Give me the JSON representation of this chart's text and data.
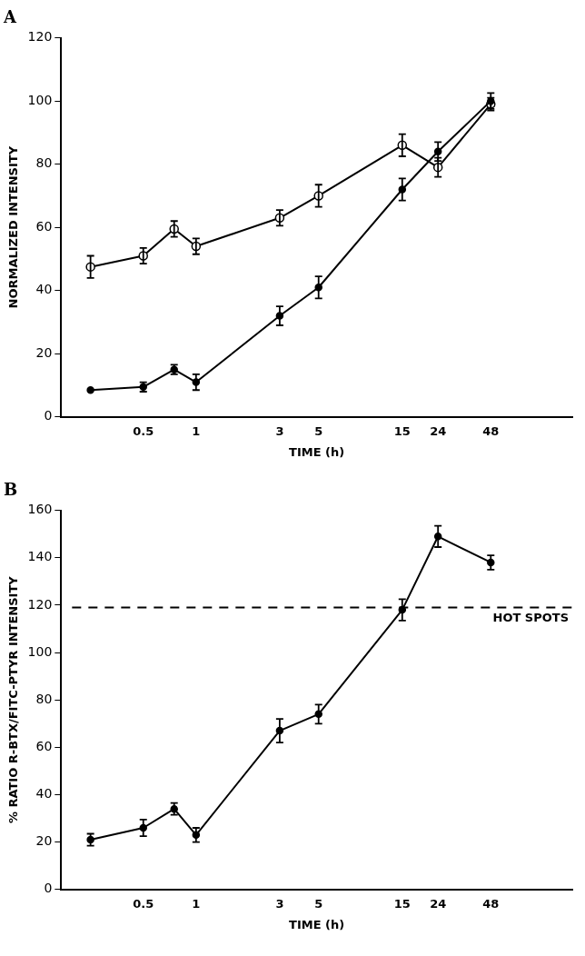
{
  "chart_data": [
    {
      "type": "line",
      "title": "A",
      "xlabel": "TIME (h)",
      "ylabel": "NORMALIZED INTENSITY",
      "log": "x",
      "grid": false,
      "legend": false,
      "line_style": "solid",
      "x": [
        0.25,
        0.5,
        0.75,
        1,
        3,
        5,
        15,
        24,
        48
      ],
      "xlim": [
        0.17,
        140
      ],
      "xticks": [
        0.5,
        1,
        3,
        5,
        15,
        24,
        48
      ],
      "ylim": [
        0,
        120
      ],
      "yticks": [
        0,
        20,
        40,
        60,
        80,
        100,
        120
      ],
      "series": [
        {
          "color": "#000000",
          "marker": "circle-open",
          "values": [
            47.5,
            51,
            59.5,
            54,
            63,
            70,
            86,
            79,
            99
          ],
          "errors": [
            3.5,
            2.5,
            2.5,
            2.5,
            2.5,
            3.5,
            3.5,
            3,
            2
          ]
        },
        {
          "color": "#000000",
          "marker": "circle",
          "values": [
            8.5,
            9.5,
            15,
            11,
            32,
            41,
            72,
            84,
            100
          ],
          "errors": [
            null,
            1.5,
            1.5,
            2.5,
            3,
            3.5,
            3.5,
            3,
            2.5
          ]
        }
      ]
    },
    {
      "type": "line",
      "title": "B",
      "xlabel": "TIME (h)",
      "ylabel": "% RATIO R-BTX/FITC-PTYR INTENSITY",
      "log": "x",
      "grid": false,
      "legend": false,
      "line_style": "solid",
      "x": [
        0.25,
        0.5,
        0.75,
        1,
        3,
        5,
        15,
        24,
        48
      ],
      "xlim": [
        0.17,
        140
      ],
      "xticks": [
        0.5,
        1,
        3,
        5,
        15,
        24,
        48
      ],
      "ylim": [
        0,
        160
      ],
      "yticks": [
        0,
        20,
        40,
        60,
        80,
        100,
        120,
        140,
        160
      ],
      "ref_lines": [
        {
          "axis": "y",
          "value": 119,
          "label": "HOT SPOTS",
          "line_style": "dashed"
        }
      ],
      "series": [
        {
          "color": "#000000",
          "marker": "circle",
          "values": [
            21,
            26,
            34,
            23,
            67,
            74,
            118,
            149,
            138
          ],
          "errors": [
            2.5,
            3.5,
            2.5,
            3,
            5,
            4,
            4.5,
            4.5,
            3
          ]
        }
      ]
    }
  ]
}
